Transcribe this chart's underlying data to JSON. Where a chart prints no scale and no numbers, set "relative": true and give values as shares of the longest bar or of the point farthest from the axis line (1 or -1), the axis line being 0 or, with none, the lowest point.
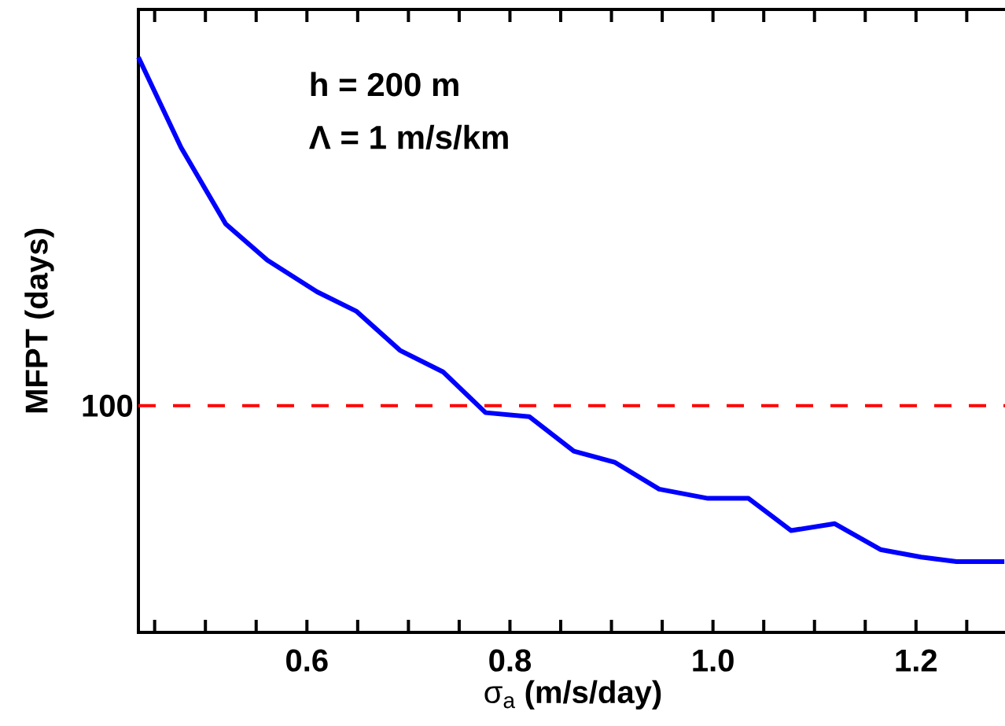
{
  "chart_data": {
    "type": "line",
    "xlabel": "σ$_{a}$ **(m/s/day)**",
    "ylabel": "MFPT (days)",
    "annotations": [
      "h = 200 m",
      "Λ = 1 m/s/km",
      "100"
    ],
    "relative": true,
    "x": [
      0.434,
      0.476,
      0.52,
      0.561,
      0.61,
      0.649,
      0.692,
      0.734,
      0.776,
      0.819,
      0.863,
      0.903,
      0.947,
      0.995,
      1.035,
      1.077,
      1.12,
      1.165,
      1.205,
      1.24,
      1.287
    ],
    "series": [
      {
        "color": "#0000ff",
        "values": [
          1,
          0.843,
          0.71,
          0.647,
          0.592,
          0.558,
          0.49,
          0.453,
          0.382,
          0.375,
          0.315,
          0.296,
          0.249,
          0.233,
          0.233,
          0.177,
          0.189,
          0.144,
          0.131,
          0.123,
          0.123
        ]
      }
    ],
    "xlim": [
      0.434,
      1.29
    ],
    "xticks": [
      {
        "value": 0.45,
        "label": null
      },
      {
        "value": 0.5,
        "label": null
      },
      {
        "value": 0.55,
        "label": null
      },
      0.6,
      {
        "value": 0.65,
        "label": null
      },
      {
        "value": 0.7,
        "label": null
      },
      {
        "value": 0.75,
        "label": null
      },
      0.8,
      {
        "value": 0.85,
        "label": null
      },
      {
        "value": 0.9,
        "label": null
      },
      {
        "value": 0.95,
        "label": null
      },
      {
        "value": 1.0,
        "label": "1.0"
      },
      {
        "value": 1.05,
        "label": null
      },
      {
        "value": 1.1,
        "label": null
      },
      {
        "value": 1.15,
        "label": null
      },
      1.2,
      {
        "value": 1.25,
        "label": null
      }
    ],
    "ref_lines": [
      {
        "axis": "y",
        "value": 0.394,
        "color": "#ff0000",
        "line_style": "dashed"
      }
    ],
    "marker": "none",
    "line_style": "solid",
    "grid": false,
    "legend": false
  }
}
